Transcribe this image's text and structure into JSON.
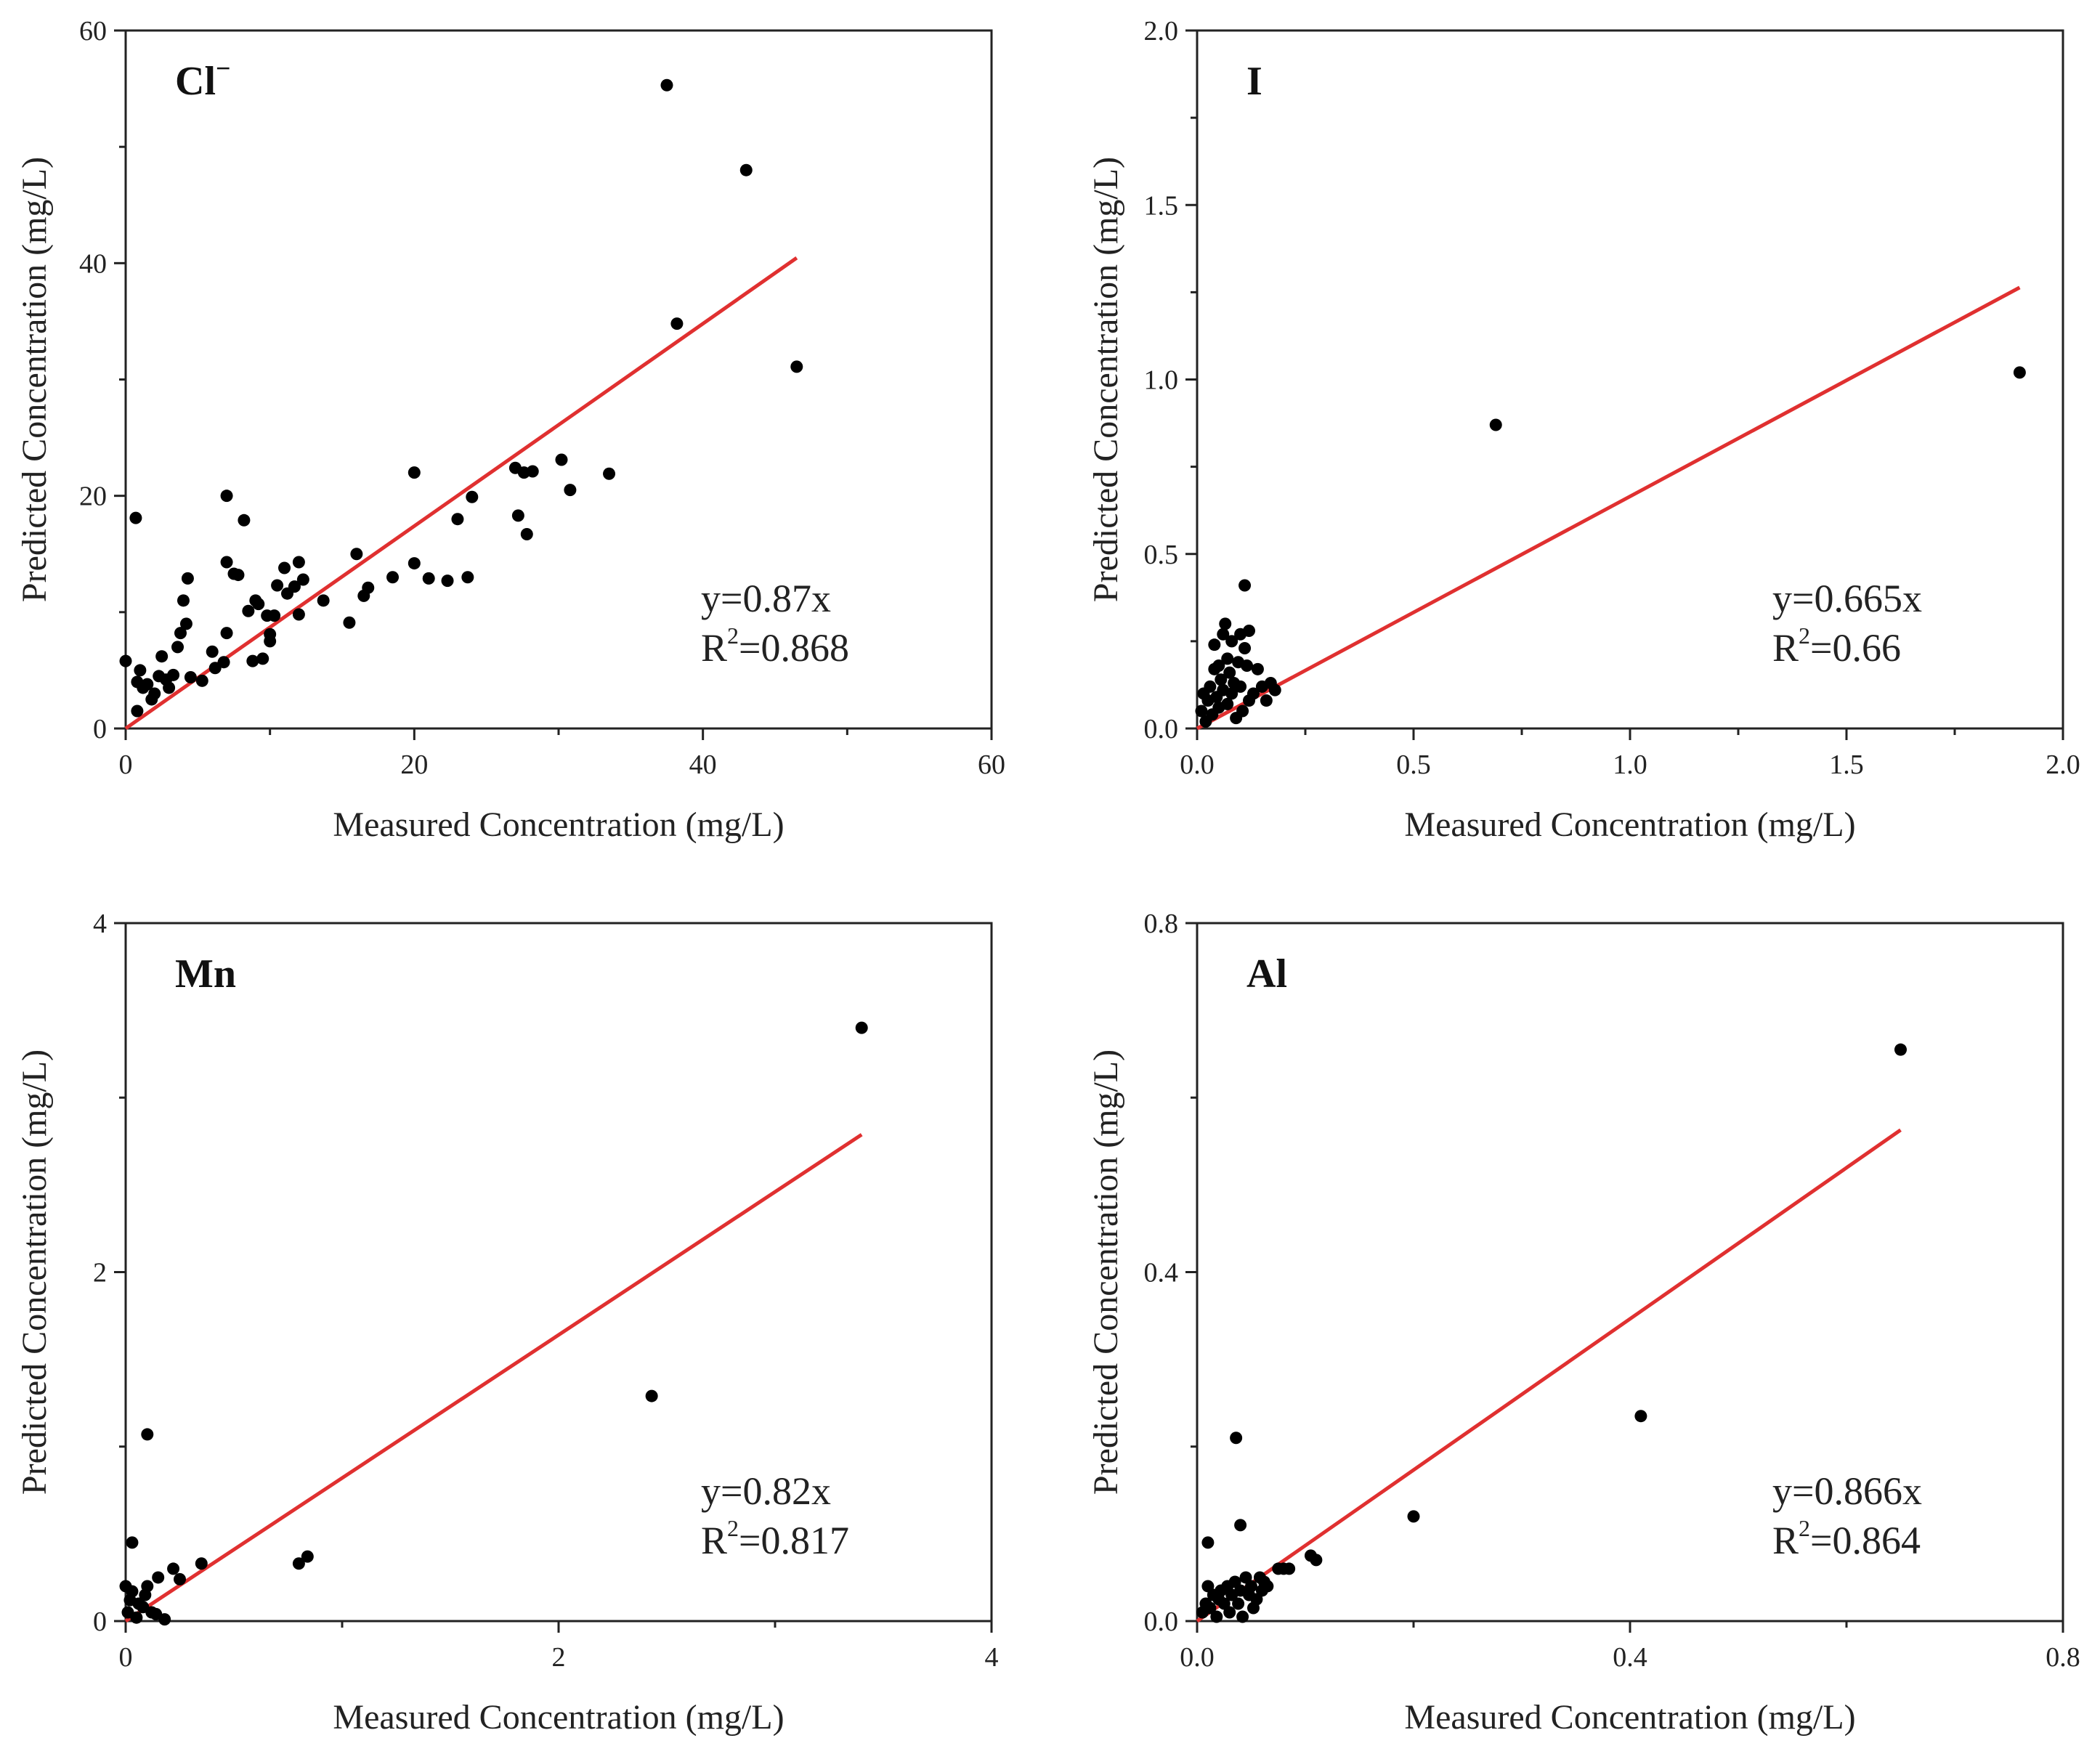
{
  "colors": {
    "points": "#000000",
    "fit_line": "#e03030",
    "axes": "#222222"
  },
  "chart_data": [
    {
      "type": "scatter",
      "title": "Cl",
      "title_superscript": "−",
      "xlabel": "Measured Concentration (mg/L)",
      "ylabel": "Predicted Concentration (mg/L)",
      "xlim": [
        0,
        60
      ],
      "ylim": [
        0,
        60
      ],
      "xticks": [
        0,
        20,
        40,
        60
      ],
      "yticks": [
        0,
        20,
        40,
        60
      ],
      "xtick_labels": [
        "0",
        "20",
        "40",
        "60"
      ],
      "ytick_labels": [
        "0",
        "20",
        "40",
        "60"
      ],
      "equation": "y=0.87x",
      "r2_prefix": "R",
      "r2_sup": "2",
      "r2_value": "=0.868",
      "fit": {
        "slope": 0.87,
        "x_end": 46.5
      },
      "points": [
        [
          0,
          5.8
        ],
        [
          0.7,
          18.1
        ],
        [
          0.8,
          1.5
        ],
        [
          0.8,
          4
        ],
        [
          1,
          5
        ],
        [
          1.2,
          3.5
        ],
        [
          1.5,
          3.8
        ],
        [
          1.8,
          2.5
        ],
        [
          2,
          3
        ],
        [
          2.3,
          4.5
        ],
        [
          2.5,
          6.2
        ],
        [
          2.8,
          4.2
        ],
        [
          3,
          3.5
        ],
        [
          3.3,
          4.6
        ],
        [
          3.6,
          7
        ],
        [
          3.8,
          8.2
        ],
        [
          4,
          11
        ],
        [
          4.2,
          9
        ],
        [
          4.3,
          12.9
        ],
        [
          4.5,
          4.4
        ],
        [
          5.3,
          4.1
        ],
        [
          6,
          6.6
        ],
        [
          6.2,
          5.2
        ],
        [
          6.8,
          5.7
        ],
        [
          7,
          20
        ],
        [
          7,
          14.3
        ],
        [
          7,
          8.2
        ],
        [
          7.5,
          13.3
        ],
        [
          7.8,
          13.2
        ],
        [
          8.2,
          17.9
        ],
        [
          8.5,
          10.1
        ],
        [
          8.8,
          5.8
        ],
        [
          9,
          11
        ],
        [
          9.2,
          10.7
        ],
        [
          9.5,
          6
        ],
        [
          9.8,
          9.7
        ],
        [
          10,
          8.1
        ],
        [
          10,
          7.5
        ],
        [
          10.3,
          9.7
        ],
        [
          10.5,
          12.3
        ],
        [
          11,
          13.8
        ],
        [
          11.2,
          11.6
        ],
        [
          11.7,
          12.2
        ],
        [
          12,
          14.3
        ],
        [
          12,
          9.8
        ],
        [
          12.3,
          12.8
        ],
        [
          13.7,
          11
        ],
        [
          15.5,
          9.1
        ],
        [
          16,
          15
        ],
        [
          16.5,
          11.4
        ],
        [
          16.8,
          12.1
        ],
        [
          18.5,
          13
        ],
        [
          20,
          22
        ],
        [
          20,
          14.2
        ],
        [
          21,
          12.9
        ],
        [
          22.3,
          12.7
        ],
        [
          23,
          18
        ],
        [
          23.7,
          13
        ],
        [
          24,
          19.9
        ],
        [
          27,
          22.4
        ],
        [
          27.2,
          18.3
        ],
        [
          27.6,
          22
        ],
        [
          27.8,
          16.7
        ],
        [
          28.2,
          22.1
        ],
        [
          30.2,
          23.1
        ],
        [
          30.8,
          20.5
        ],
        [
          33.5,
          21.9
        ],
        [
          37.5,
          55.3
        ],
        [
          38.2,
          34.8
        ],
        [
          43,
          48
        ],
        [
          46.5,
          31.1
        ]
      ]
    },
    {
      "type": "scatter",
      "title": "I",
      "title_superscript": "",
      "xlabel": "Measured Concentration (mg/L)",
      "ylabel": "Predicted Concentration (mg/L)",
      "xlim": [
        0,
        2
      ],
      "ylim": [
        0,
        2
      ],
      "xticks": [
        0,
        0.5,
        1.0,
        1.5,
        2.0
      ],
      "yticks": [
        0,
        0.5,
        1.0,
        1.5,
        2.0
      ],
      "xtick_labels": [
        "0.0",
        "0.5",
        "1.0",
        "1.5",
        "2.0"
      ],
      "ytick_labels": [
        "0.0",
        "0.5",
        "1.0",
        "1.5",
        "2.0"
      ],
      "equation": "y=0.665x",
      "r2_prefix": "R",
      "r2_sup": "2",
      "r2_value": "=0.66",
      "fit": {
        "slope": 0.665,
        "x_end": 1.9
      },
      "points": [
        [
          0.01,
          0.05
        ],
        [
          0.015,
          0.1
        ],
        [
          0.02,
          0.02
        ],
        [
          0.025,
          0.08
        ],
        [
          0.03,
          0.12
        ],
        [
          0.035,
          0.04
        ],
        [
          0.04,
          0.17
        ],
        [
          0.04,
          0.24
        ],
        [
          0.045,
          0.09
        ],
        [
          0.05,
          0.18
        ],
        [
          0.05,
          0.06
        ],
        [
          0.055,
          0.14
        ],
        [
          0.06,
          0.27
        ],
        [
          0.06,
          0.11
        ],
        [
          0.065,
          0.3
        ],
        [
          0.07,
          0.2
        ],
        [
          0.07,
          0.07
        ],
        [
          0.075,
          0.16
        ],
        [
          0.08,
          0.25
        ],
        [
          0.08,
          0.1
        ],
        [
          0.085,
          0.13
        ],
        [
          0.09,
          0.03
        ],
        [
          0.095,
          0.19
        ],
        [
          0.1,
          0.27
        ],
        [
          0.1,
          0.12
        ],
        [
          0.105,
          0.05
        ],
        [
          0.11,
          0.23
        ],
        [
          0.11,
          0.41
        ],
        [
          0.115,
          0.18
        ],
        [
          0.12,
          0.28
        ],
        [
          0.12,
          0.08
        ],
        [
          0.13,
          0.1
        ],
        [
          0.14,
          0.17
        ],
        [
          0.15,
          0.12
        ],
        [
          0.16,
          0.08
        ],
        [
          0.17,
          0.13
        ],
        [
          0.18,
          0.11
        ],
        [
          0.69,
          0.87
        ],
        [
          1.9,
          1.02
        ]
      ]
    },
    {
      "type": "scatter",
      "title": "Mn",
      "title_superscript": "",
      "xlabel": "Measured Concentration (mg/L)",
      "ylabel": "Predicted Concentration (mg/L)",
      "xlim": [
        0,
        4
      ],
      "ylim": [
        0,
        4
      ],
      "xticks": [
        0,
        2,
        4
      ],
      "yticks": [
        0,
        2,
        4
      ],
      "xtick_labels": [
        "0",
        "2",
        "4"
      ],
      "ytick_labels": [
        "0",
        "2",
        "4"
      ],
      "equation": "y=0.82x",
      "r2_prefix": "R",
      "r2_sup": "2",
      "r2_value": "=0.817",
      "fit": {
        "slope": 0.82,
        "x_end": 3.4
      },
      "points": [
        [
          0,
          0.2
        ],
        [
          0.01,
          0.05
        ],
        [
          0.02,
          0.12
        ],
        [
          0.03,
          0.17
        ],
        [
          0.03,
          0.45
        ],
        [
          0.05,
          0.02
        ],
        [
          0.06,
          0.1
        ],
        [
          0.08,
          0.08
        ],
        [
          0.09,
          0.15
        ],
        [
          0.1,
          0.2
        ],
        [
          0.1,
          1.07
        ],
        [
          0.12,
          0.05
        ],
        [
          0.14,
          0.04
        ],
        [
          0.15,
          0.25
        ],
        [
          0.18,
          0.01
        ],
        [
          0.22,
          0.3
        ],
        [
          0.25,
          0.24
        ],
        [
          0.35,
          0.33
        ],
        [
          0.8,
          0.33
        ],
        [
          0.84,
          0.37
        ],
        [
          2.43,
          1.29
        ],
        [
          3.4,
          3.4
        ]
      ]
    },
    {
      "type": "scatter",
      "title": "Al",
      "title_superscript": "",
      "xlabel": "Measured Concentration (mg/L)",
      "ylabel": "Predicted Concentration (mg/L)",
      "xlim": [
        0,
        0.8
      ],
      "ylim": [
        0,
        0.8
      ],
      "xticks": [
        0,
        0.4,
        0.8
      ],
      "yticks": [
        0,
        0.4,
        0.8
      ],
      "xtick_labels": [
        "0.0",
        "0.4",
        "0.8"
      ],
      "ytick_labels": [
        "0.0",
        "0.4",
        "0.8"
      ],
      "equation": "y=0.866x",
      "r2_prefix": "R",
      "r2_sup": "2",
      "r2_value": "=0.864",
      "fit": {
        "slope": 0.866,
        "x_end": 0.65
      },
      "points": [
        [
          0.005,
          0.01
        ],
        [
          0.008,
          0.02
        ],
        [
          0.01,
          0.04
        ],
        [
          0.01,
          0.09
        ],
        [
          0.012,
          0.015
        ],
        [
          0.015,
          0.03
        ],
        [
          0.018,
          0.005
        ],
        [
          0.02,
          0.025
        ],
        [
          0.022,
          0.035
        ],
        [
          0.025,
          0.02
        ],
        [
          0.028,
          0.04
        ],
        [
          0.03,
          0.01
        ],
        [
          0.032,
          0.03
        ],
        [
          0.035,
          0.045
        ],
        [
          0.036,
          0.21
        ],
        [
          0.038,
          0.02
        ],
        [
          0.04,
          0.035
        ],
        [
          0.04,
          0.11
        ],
        [
          0.042,
          0.005
        ],
        [
          0.045,
          0.05
        ],
        [
          0.048,
          0.03
        ],
        [
          0.05,
          0.04
        ],
        [
          0.052,
          0.015
        ],
        [
          0.055,
          0.025
        ],
        [
          0.058,
          0.05
        ],
        [
          0.06,
          0.035
        ],
        [
          0.062,
          0.045
        ],
        [
          0.065,
          0.04
        ],
        [
          0.075,
          0.06
        ],
        [
          0.08,
          0.06
        ],
        [
          0.085,
          0.06
        ],
        [
          0.105,
          0.075
        ],
        [
          0.11,
          0.07
        ],
        [
          0.2,
          0.12
        ],
        [
          0.41,
          0.235
        ],
        [
          0.65,
          0.655
        ]
      ]
    }
  ]
}
